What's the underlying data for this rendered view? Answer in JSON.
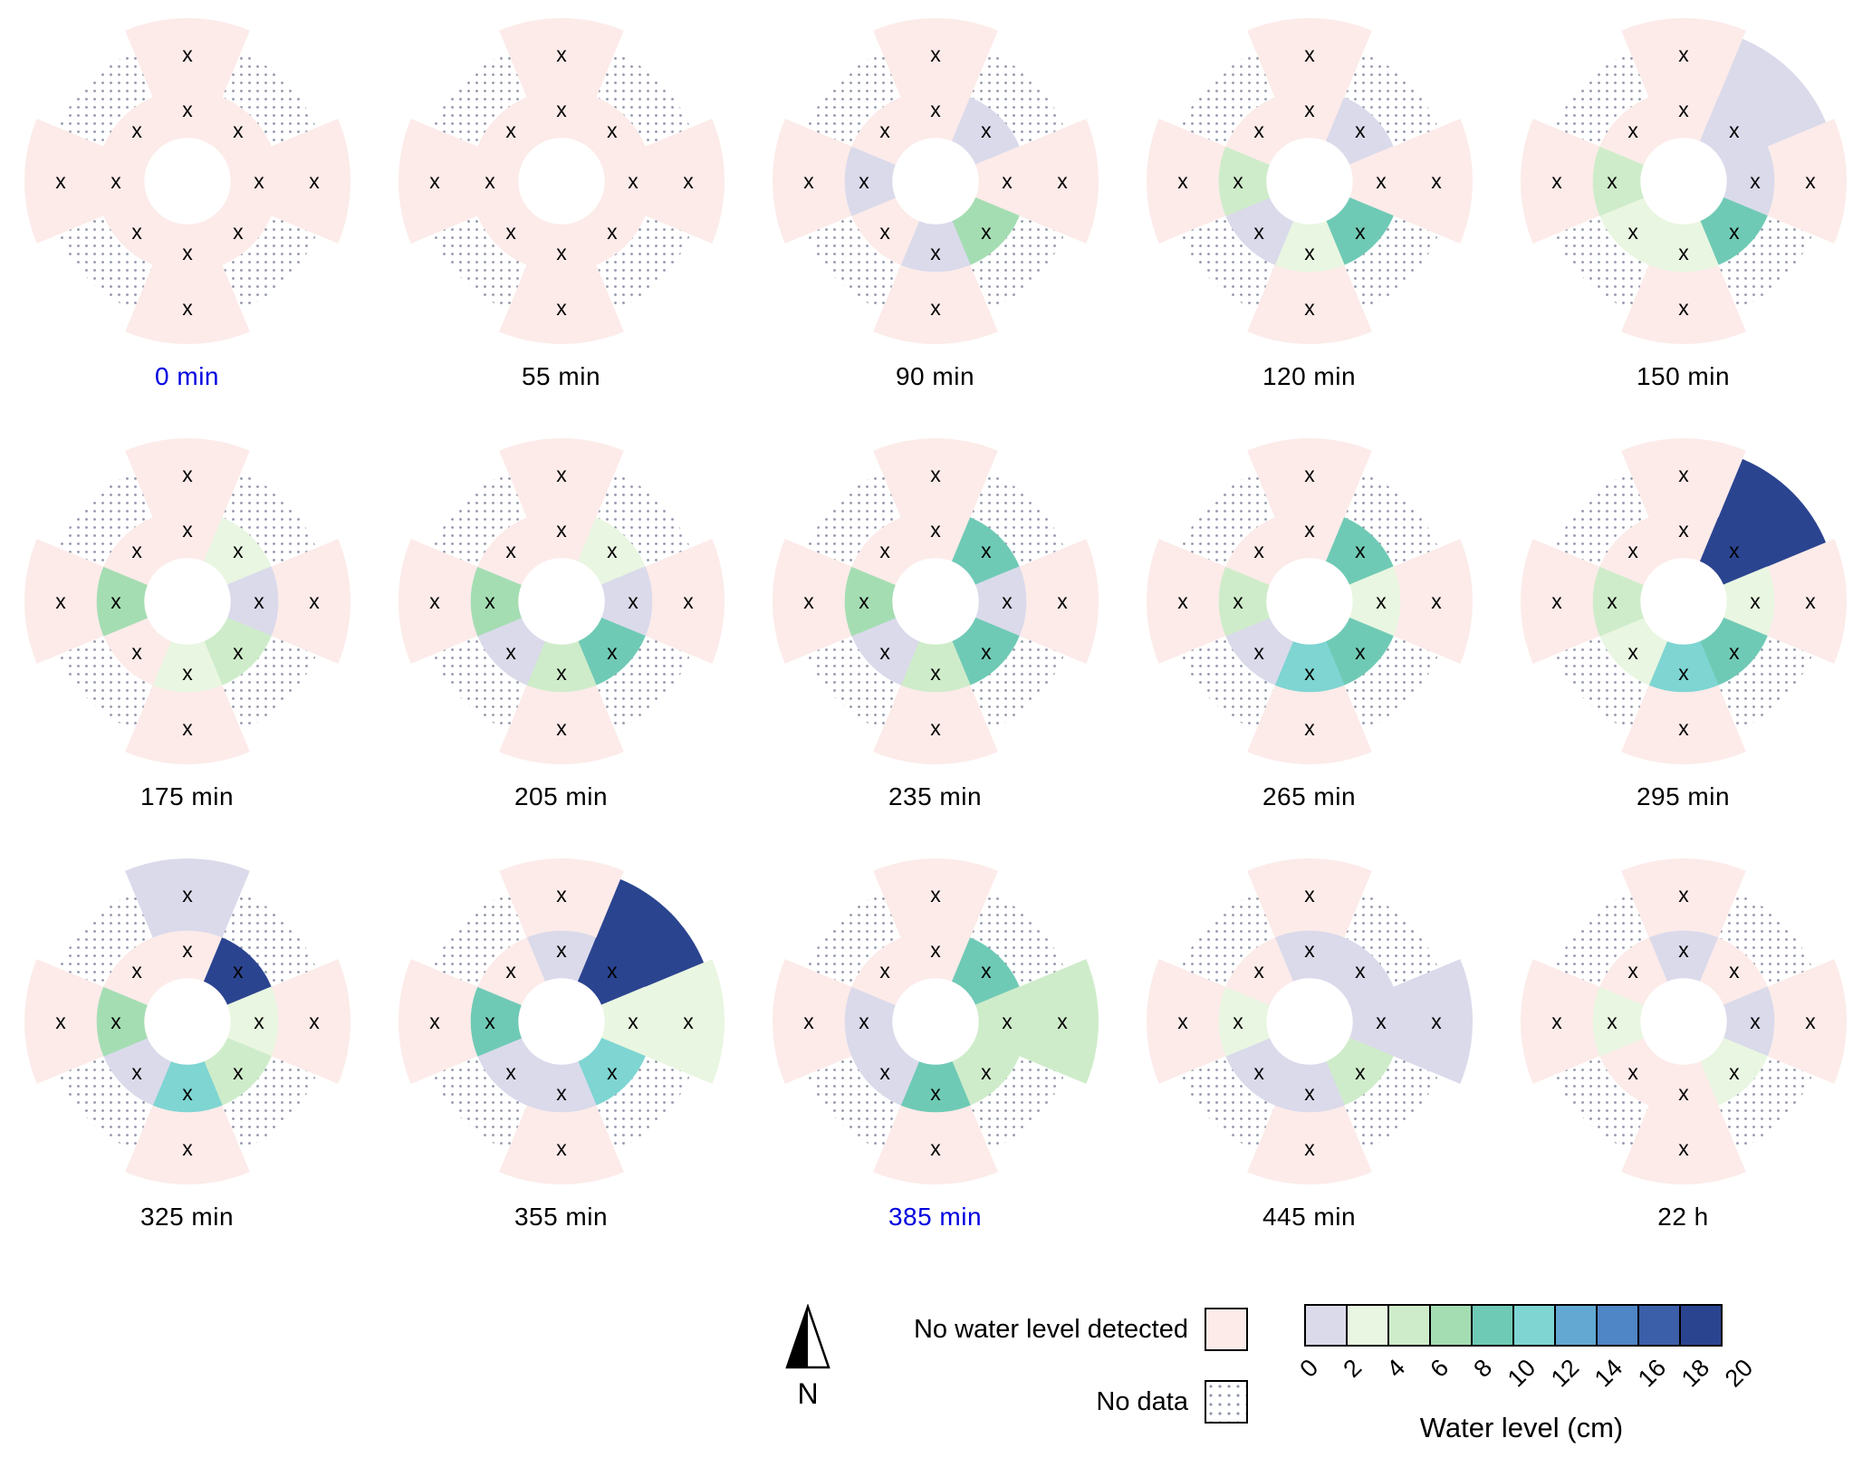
{
  "figure": {
    "background": "#ffffff"
  },
  "legend": {
    "north_label": "N",
    "no_water_label": "No water level detected",
    "no_data_label": "No data",
    "colorbar_title": "Water level (cm)",
    "colorbar_ticks": [
      "0",
      "2",
      "4",
      "6",
      "8",
      "10",
      "12",
      "14",
      "16",
      "18",
      "20"
    ]
  },
  "palette": {
    "no_water": "#fcebe9",
    "no_data_dot": "#8f96a8",
    "levels": [
      "#dadaeb",
      "#e9f6e1",
      "#cfecca",
      "#a5ddb3",
      "#6fcab5",
      "#7ed5d2",
      "#62a8d2",
      "#4f86c6",
      "#3b5fa9",
      "#2b4490"
    ],
    "highlight_text": "#0000e0",
    "text": "#000000"
  },
  "chart_data": {
    "type": "coxcomb-small-multiples",
    "description": "15 circular rose diagrams (3 rows x 5 columns) showing water level (cm) by compass direction over time. Each rose has an inner ring of 8 sectors and an outer ring: cardinal petals (N,E,S,W) plus diagonal wedges (NE,SE,SW,NW). Sector values are the lower bound of a 2-cm color bin; 'none' = no water level detected (pink); 'nodata' = no data (dotted). Every inner sector and every cardinal outer petal is marked with an x.",
    "directions": [
      "N",
      "NE",
      "E",
      "SE",
      "S",
      "SW",
      "W",
      "NW"
    ],
    "units": "cm",
    "bin_size": 2,
    "range": [
      0,
      20
    ],
    "panels": [
      {
        "label": "0 min",
        "highlight": true,
        "inner": {
          "N": "none",
          "NE": "none",
          "E": "none",
          "SE": "none",
          "S": "none",
          "SW": "none",
          "W": "none",
          "NW": "none"
        },
        "outer": {
          "N": "none",
          "NE": "nodata",
          "E": "none",
          "SE": "nodata",
          "S": "none",
          "SW": "nodata",
          "W": "none",
          "NW": "nodata"
        }
      },
      {
        "label": "55 min",
        "highlight": false,
        "inner": {
          "N": "none",
          "NE": "none",
          "E": "none",
          "SE": "none",
          "S": "none",
          "SW": "none",
          "W": "none",
          "NW": "none"
        },
        "outer": {
          "N": "none",
          "NE": "nodata",
          "E": "none",
          "SE": "nodata",
          "S": "none",
          "SW": "nodata",
          "W": "none",
          "NW": "nodata"
        }
      },
      {
        "label": "90 min",
        "highlight": false,
        "inner": {
          "N": "none",
          "NE": 0,
          "E": "none",
          "SE": 6,
          "S": 0,
          "SW": "none",
          "W": 0,
          "NW": "none"
        },
        "outer": {
          "N": "none",
          "NE": "nodata",
          "E": "none",
          "SE": "nodata",
          "S": "none",
          "SW": "nodata",
          "W": "none",
          "NW": "nodata"
        }
      },
      {
        "label": "120 min",
        "highlight": false,
        "inner": {
          "N": "none",
          "NE": 0,
          "E": "none",
          "SE": 8,
          "S": 2,
          "SW": 0,
          "W": 4,
          "NW": "none"
        },
        "outer": {
          "N": "none",
          "NE": "nodata",
          "E": "none",
          "SE": "nodata",
          "S": "none",
          "SW": "nodata",
          "W": "none",
          "NW": "nodata"
        }
      },
      {
        "label": "150 min",
        "highlight": false,
        "inner": {
          "N": "none",
          "NE": 0,
          "E": 0,
          "SE": 8,
          "S": 2,
          "SW": 2,
          "W": 4,
          "NW": "none"
        },
        "outer": {
          "N": "none",
          "NE": 0,
          "E": "none",
          "SE": "nodata",
          "S": "none",
          "SW": "nodata",
          "W": "none",
          "NW": "nodata"
        }
      },
      {
        "label": "175 min",
        "highlight": false,
        "inner": {
          "N": "none",
          "NE": 2,
          "E": 0,
          "SE": 4,
          "S": 2,
          "SW": "none",
          "W": 6,
          "NW": "none"
        },
        "outer": {
          "N": "none",
          "NE": "nodata",
          "E": "none",
          "SE": "nodata",
          "S": "none",
          "SW": "nodata",
          "W": "none",
          "NW": "nodata"
        }
      },
      {
        "label": "205 min",
        "highlight": false,
        "inner": {
          "N": "none",
          "NE": 2,
          "E": 0,
          "SE": 8,
          "S": 4,
          "SW": 0,
          "W": 6,
          "NW": "none"
        },
        "outer": {
          "N": "none",
          "NE": "nodata",
          "E": "none",
          "SE": "nodata",
          "S": "none",
          "SW": "nodata",
          "W": "none",
          "NW": "nodata"
        }
      },
      {
        "label": "235 min",
        "highlight": false,
        "inner": {
          "N": "none",
          "NE": 8,
          "E": 0,
          "SE": 8,
          "S": 4,
          "SW": 0,
          "W": 6,
          "NW": "none"
        },
        "outer": {
          "N": "none",
          "NE": "nodata",
          "E": "none",
          "SE": "nodata",
          "S": "none",
          "SW": "nodata",
          "W": "none",
          "NW": "nodata"
        }
      },
      {
        "label": "265 min",
        "highlight": false,
        "inner": {
          "N": "none",
          "NE": 8,
          "E": 2,
          "SE": 8,
          "S": 10,
          "SW": 0,
          "W": 4,
          "NW": "none"
        },
        "outer": {
          "N": "none",
          "NE": "nodata",
          "E": "none",
          "SE": "nodata",
          "S": "none",
          "SW": "nodata",
          "W": "none",
          "NW": "nodata"
        }
      },
      {
        "label": "295 min",
        "highlight": false,
        "inner": {
          "N": "none",
          "NE": 18,
          "E": 2,
          "SE": 8,
          "S": 10,
          "SW": 2,
          "W": 4,
          "NW": "none"
        },
        "outer": {
          "N": "none",
          "NE": 18,
          "E": "none",
          "SE": "nodata",
          "S": "none",
          "SW": "nodata",
          "W": "none",
          "NW": "nodata"
        }
      },
      {
        "label": "325 min",
        "highlight": false,
        "inner": {
          "N": "none",
          "NE": 18,
          "E": 2,
          "SE": 4,
          "S": 10,
          "SW": 0,
          "W": 6,
          "NW": "none"
        },
        "outer": {
          "N": 0,
          "NE": "nodata",
          "E": "none",
          "SE": "nodata",
          "S": "none",
          "SW": "nodata",
          "W": "none",
          "NW": "nodata"
        }
      },
      {
        "label": "355 min",
        "highlight": false,
        "inner": {
          "N": 0,
          "NE": 18,
          "E": 2,
          "SE": 10,
          "S": 0,
          "SW": 0,
          "W": 8,
          "NW": "none"
        },
        "outer": {
          "N": "none",
          "NE": 18,
          "E": 2,
          "SE": "nodata",
          "S": "none",
          "SW": "nodata",
          "W": "none",
          "NW": "nodata"
        }
      },
      {
        "label": "385 min",
        "highlight": true,
        "inner": {
          "N": "none",
          "NE": 8,
          "E": 4,
          "SE": 4,
          "S": 8,
          "SW": 0,
          "W": 0,
          "NW": "none"
        },
        "outer": {
          "N": "none",
          "NE": "nodata",
          "E": 4,
          "SE": "nodata",
          "S": "none",
          "SW": "nodata",
          "W": "none",
          "NW": "nodata"
        }
      },
      {
        "label": "445 min",
        "highlight": false,
        "inner": {
          "N": 0,
          "NE": 0,
          "E": 0,
          "SE": 4,
          "S": 0,
          "SW": 0,
          "W": 2,
          "NW": "none"
        },
        "outer": {
          "N": "none",
          "NE": "nodata",
          "E": 0,
          "SE": "nodata",
          "S": "none",
          "SW": "nodata",
          "W": "none",
          "NW": "nodata"
        }
      },
      {
        "label": "22 h",
        "highlight": false,
        "inner": {
          "N": 0,
          "NE": "none",
          "E": 0,
          "SE": 2,
          "S": "none",
          "SW": "none",
          "W": 2,
          "NW": "none"
        },
        "outer": {
          "N": "none",
          "NE": "nodata",
          "E": "none",
          "SE": "nodata",
          "S": "none",
          "SW": "nodata",
          "W": "none",
          "NW": "nodata"
        }
      }
    ]
  }
}
